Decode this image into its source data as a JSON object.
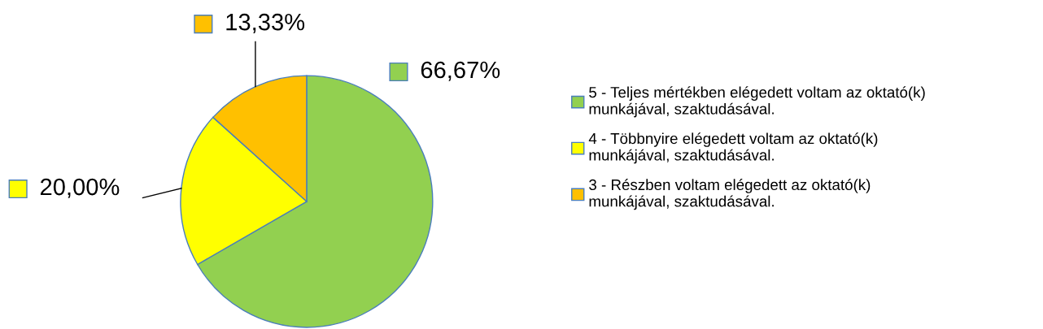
{
  "chart_data": {
    "type": "pie",
    "categories": [
      "5 - Teljes mértékben elégedett voltam az oktató(k)\nmunkájával, szaktudásával.",
      "4 - Többnyire elégedett voltam az oktató(k)\nmunkájával, szaktudásával.",
      "3 - Részben voltam elégedett az oktató(k)\nmunkájával, szaktudásával."
    ],
    "values": [
      66.67,
      20.0,
      13.33
    ],
    "colors": [
      "#92d050",
      "#ffff00",
      "#ffc000"
    ],
    "value_labels": [
      "66,67%",
      "20,00%",
      "13,33%"
    ],
    "legend": "right"
  }
}
